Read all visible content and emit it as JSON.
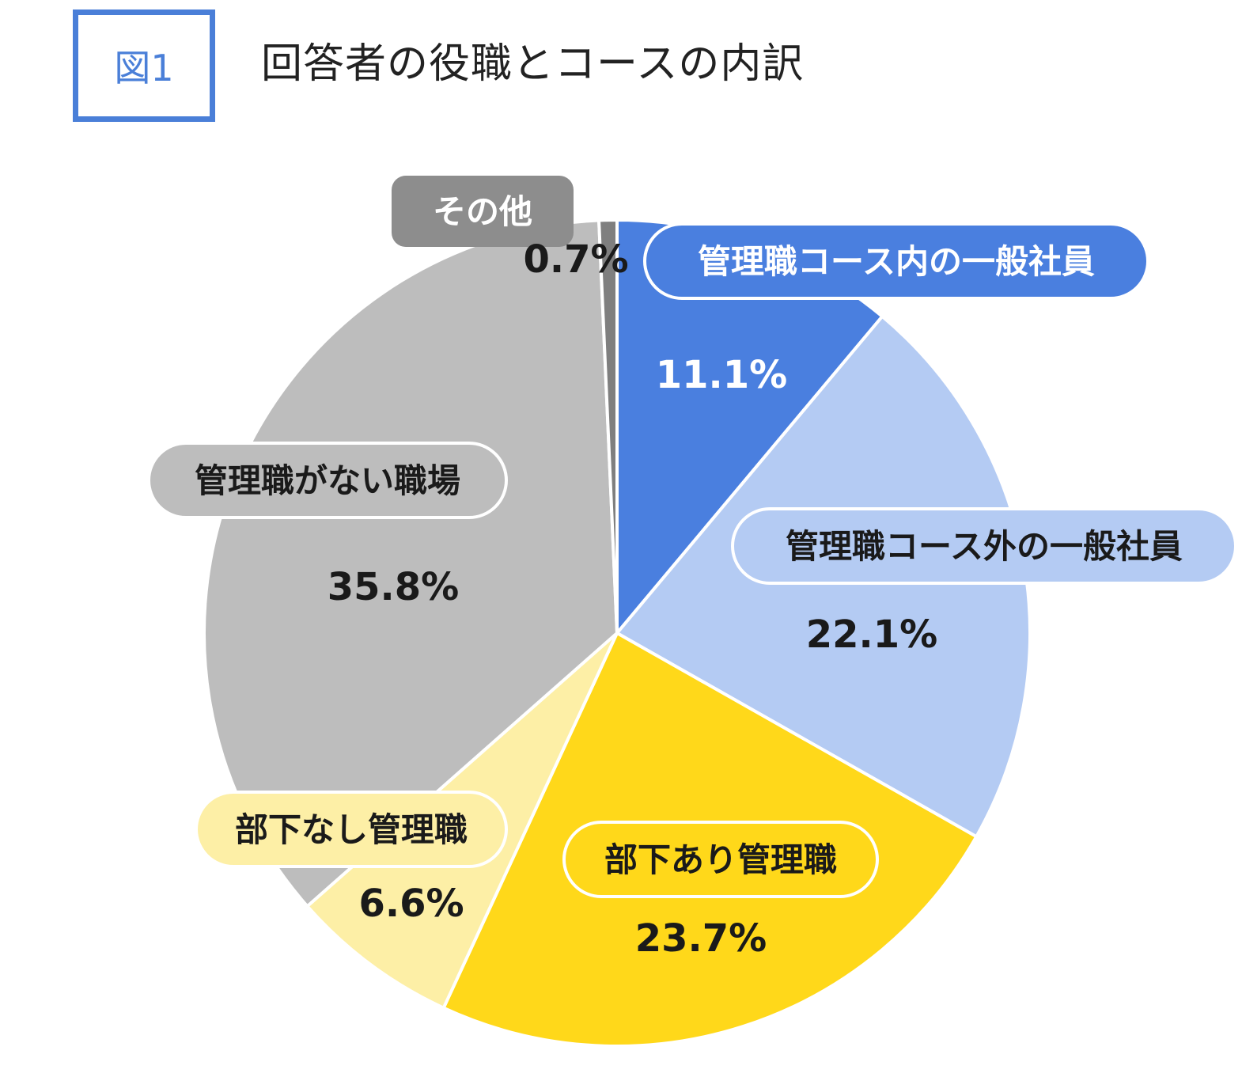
{
  "figure": {
    "badge": "図1",
    "title": "回答者の役職とコースの内訳"
  },
  "chart_data": {
    "type": "pie",
    "title": "回答者の役職とコースの内訳",
    "unit": "%",
    "slices": [
      {
        "label": "管理職コース内の一般社員",
        "value": 11.1,
        "value_label": "11.1%",
        "color": "#4a7fdf",
        "label_fill": "#4a7fdf",
        "label_text_color": "#ffffff",
        "value_text_color": "#ffffff"
      },
      {
        "label": "管理職コース外の一般社員",
        "value": 22.1,
        "value_label": "22.1%",
        "color": "#b4cbf3",
        "label_fill": "#b4cbf3",
        "label_text_color": "#1a1a1a",
        "value_text_color": "#1a1a1a"
      },
      {
        "label": "部下あり管理職",
        "value": 23.7,
        "value_label": "23.7%",
        "color": "#ffd81a",
        "label_fill": "#ffd81a",
        "label_text_color": "#1a1a1a",
        "value_text_color": "#1a1a1a"
      },
      {
        "label": "部下なし管理職",
        "value": 6.6,
        "value_label": "6.6%",
        "color": "#fdefa6",
        "label_fill": "#fdefa6",
        "label_text_color": "#1a1a1a",
        "value_text_color": "#1a1a1a"
      },
      {
        "label": "管理職がない職場",
        "value": 35.8,
        "value_label": "35.8%",
        "color": "#bdbdbd",
        "label_fill": "#bdbdbd",
        "label_text_color": "#1a1a1a",
        "value_text_color": "#1a1a1a"
      },
      {
        "label": "その他",
        "value": 0.7,
        "value_label": "0.7%",
        "color": "#7f7f7f",
        "label_fill": "#8d8d8d",
        "label_text_color": "#ffffff",
        "value_text_color": "#1a1a1a"
      }
    ]
  }
}
